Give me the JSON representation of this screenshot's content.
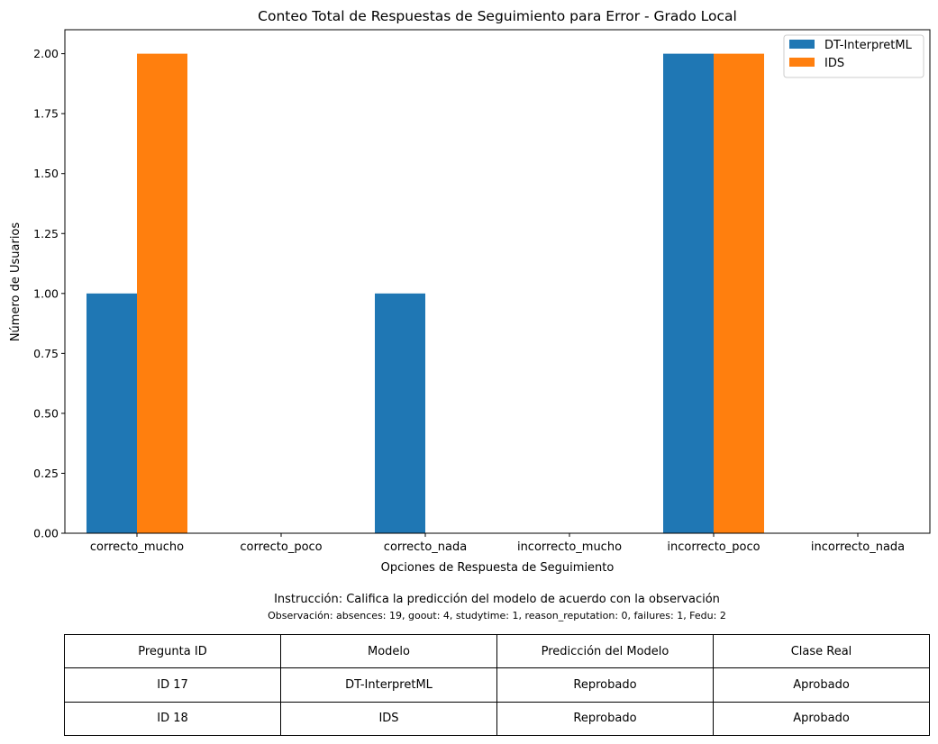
{
  "chart_data": {
    "type": "bar",
    "title": "Conteo Total de Respuestas de Seguimiento para Error - Grado Local",
    "xlabel": "Opciones de Respuesta de Seguimiento",
    "ylabel": "Número de Usuarios",
    "categories": [
      "correcto_mucho",
      "correcto_poco",
      "correcto_nada",
      "incorrecto_mucho",
      "incorrecto_poco",
      "incorrecto_nada"
    ],
    "series": [
      {
        "name": "DT-InterpretML",
        "color": "#1f77b4",
        "values": [
          1,
          0,
          1,
          0,
          2,
          0
        ]
      },
      {
        "name": "IDS",
        "color": "#ff7f0e",
        "values": [
          2,
          0,
          0,
          0,
          2,
          0
        ]
      }
    ],
    "ylim": [
      0,
      2.1
    ],
    "yticks": [
      "0.00",
      "0.25",
      "0.50",
      "0.75",
      "1.00",
      "1.25",
      "1.50",
      "1.75",
      "2.00"
    ],
    "grid": false,
    "legend_position": "top-right"
  },
  "instruction": "Instrucción: Califica la predicción del modelo de acuerdo con la observación",
  "observation": "Observación: absences: 19, goout: 4, studytime: 1, reason_reputation: 0, failures: 1, Fedu: 2",
  "table": {
    "headers": [
      "Pregunta ID",
      "Modelo",
      "Predicción del Modelo",
      "Clase Real"
    ],
    "rows": [
      [
        "ID 17",
        "DT-InterpretML",
        "Reprobado",
        "Aprobado"
      ],
      [
        "ID 18",
        "IDS",
        "Reprobado",
        "Aprobado"
      ]
    ]
  }
}
